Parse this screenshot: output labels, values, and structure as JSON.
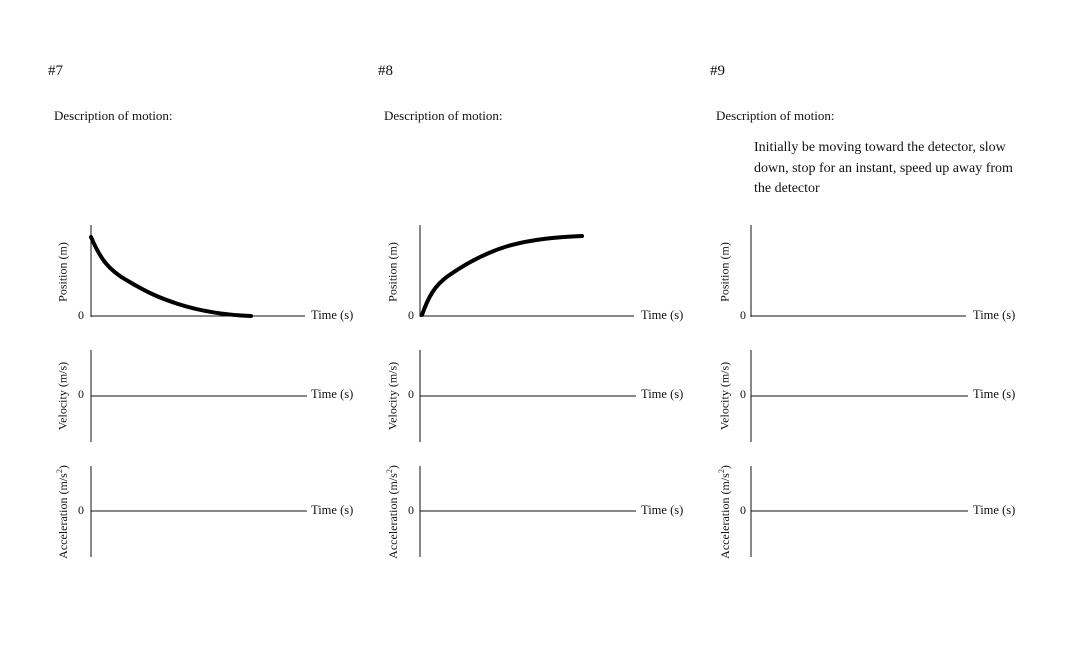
{
  "problems": [
    {
      "number": "#7",
      "description_label": "Description of motion:",
      "description_text": "",
      "position_curve": "decreasing-to-zero"
    },
    {
      "number": "#8",
      "description_label": "Description of motion:",
      "description_text": "",
      "position_curve": "increasing-from-zero"
    },
    {
      "number": "#9",
      "description_label": "Description of motion:",
      "description_text": "Initially be moving toward the detector, slow down, stop for an instant, speed up away from the detector",
      "position_curve": "none"
    }
  ],
  "axes": {
    "position_label": "Position (m)",
    "velocity_label": "Velocity (m/s)",
    "acceleration_label": "Acceleration (m/s",
    "acceleration_label_sup": "2",
    "acceleration_label_end": ")",
    "zero_label": "0",
    "time_label": "Time (s)"
  },
  "colors": {
    "ink": "#111111",
    "curve": "#000000",
    "background": "#ffffff"
  }
}
